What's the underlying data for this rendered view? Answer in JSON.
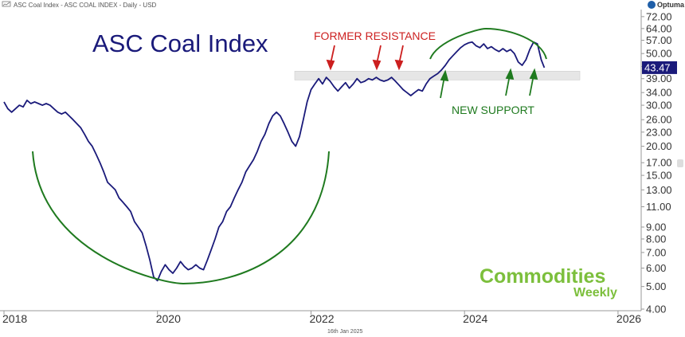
{
  "header": {
    "caption": "ASC Coal Index - ASC COAL INDEX - Daily - USD",
    "brand": "Optuma",
    "footer_date": "16th Jan 2025"
  },
  "colors": {
    "series": "#1a1a7a",
    "arc": "#1f7a1f",
    "resistance_text": "#cc1f1f",
    "support_text": "#1f7a1f",
    "band": "#e6e6e6",
    "last_label_bg": "#1a1a7a",
    "brand": "#7cbf3c"
  },
  "branding": {
    "line1": "Commodities",
    "line2": "Weekly"
  },
  "chart_data": {
    "type": "line",
    "title": "ASC Coal Index",
    "xlabel": "",
    "ylabel": "",
    "yscale": "log",
    "ylim": [
      4.0,
      76.0
    ],
    "xlim": [
      2018.0,
      2026.25
    ],
    "y_ticks": [
      "72.00",
      "64.00",
      "57.00",
      "50.00",
      "44.00",
      "39.00",
      "34.00",
      "30.00",
      "26.00",
      "23.00",
      "20.00",
      "17.00",
      "15.00",
      "13.00",
      "11.00",
      "9.00",
      "8.00",
      "7.00",
      "6.00",
      "5.00",
      "4.00"
    ],
    "x_ticks": [
      "2018",
      "2020",
      "2022",
      "2024",
      "2026"
    ],
    "last_value_label": "43.47",
    "grid": false,
    "legend": "none",
    "annotations": {
      "resistance_label": "FORMER RESISTANCE",
      "support_label": "NEW SUPPORT",
      "resistance_band": [
        38.5,
        42.0
      ]
    },
    "series": [
      {
        "x": [
          2018.0,
          2018.05,
          2018.1,
          2018.15,
          2018.2,
          2018.25,
          2018.3,
          2018.35,
          2018.4,
          2018.45,
          2018.5,
          2018.55,
          2018.6,
          2018.65,
          2018.7,
          2018.75,
          2018.8,
          2018.85,
          2018.9,
          2018.95,
          2019.0,
          2019.05,
          2019.1,
          2019.15,
          2019.2,
          2019.25,
          2019.3,
          2019.35,
          2019.4,
          2019.45,
          2019.5,
          2019.55,
          2019.6,
          2019.65,
          2019.7,
          2019.75,
          2019.8,
          2019.85,
          2019.9,
          2019.95,
          2020.0,
          2020.05,
          2020.1,
          2020.15,
          2020.2,
          2020.25,
          2020.3,
          2020.35,
          2020.4,
          2020.45,
          2020.5,
          2020.55,
          2020.6,
          2020.65,
          2020.7,
          2020.75,
          2020.8,
          2020.85,
          2020.9,
          2020.95,
          2021.0,
          2021.05,
          2021.1,
          2021.15,
          2021.2,
          2021.25,
          2021.3,
          2021.35,
          2021.4,
          2021.45,
          2021.5,
          2021.55,
          2021.6,
          2021.65,
          2021.7,
          2021.75,
          2021.8,
          2021.85,
          2021.9,
          2021.95,
          2022.0,
          2022.05,
          2022.1,
          2022.15,
          2022.2,
          2022.25,
          2022.3,
          2022.35,
          2022.4,
          2022.45,
          2022.5,
          2022.55,
          2022.6,
          2022.65,
          2022.7,
          2022.75,
          2022.8,
          2022.85,
          2022.9,
          2022.95,
          2023.0,
          2023.05,
          2023.1,
          2023.15,
          2023.2,
          2023.25,
          2023.3,
          2023.35,
          2023.4,
          2023.45,
          2023.5,
          2023.55,
          2023.6,
          2023.65,
          2023.7,
          2023.75,
          2023.8,
          2023.85,
          2023.9,
          2023.95,
          2024.0,
          2024.05,
          2024.1,
          2024.15,
          2024.2,
          2024.25,
          2024.3,
          2024.35,
          2024.4,
          2024.45,
          2024.5,
          2024.55,
          2024.6,
          2024.65,
          2024.7,
          2024.75,
          2024.8,
          2024.85,
          2024.9,
          2024.95,
          2025.0,
          2025.04
        ],
        "values": [
          31.0,
          29.0,
          28.0,
          29.0,
          30.0,
          29.5,
          31.5,
          30.5,
          31.0,
          30.5,
          30.0,
          30.5,
          30.0,
          29.0,
          28.0,
          27.5,
          28.0,
          27.0,
          26.0,
          25.0,
          24.0,
          22.5,
          21.0,
          20.0,
          18.5,
          17.0,
          15.5,
          14.0,
          13.5,
          13.0,
          12.0,
          11.5,
          11.0,
          10.5,
          9.5,
          9.0,
          8.5,
          7.5,
          6.5,
          5.5,
          5.3,
          5.8,
          6.2,
          5.9,
          5.7,
          6.0,
          6.4,
          6.1,
          5.9,
          6.0,
          6.2,
          6.0,
          5.9,
          6.5,
          7.2,
          8.0,
          9.0,
          9.5,
          10.5,
          11.0,
          12.0,
          13.0,
          14.0,
          15.5,
          16.5,
          17.5,
          19.0,
          21.0,
          22.5,
          25.0,
          27.0,
          28.0,
          27.0,
          25.0,
          23.0,
          21.0,
          20.0,
          22.0,
          26.0,
          31.0,
          35.0,
          37.0,
          39.0,
          37.0,
          39.5,
          38.0,
          36.0,
          34.5,
          36.0,
          37.5,
          35.5,
          37.0,
          39.0,
          37.5,
          38.0,
          39.0,
          38.5,
          39.5,
          38.5,
          38.0,
          38.5,
          39.5,
          38.0,
          36.5,
          35.0,
          34.0,
          33.0,
          34.0,
          35.0,
          34.5,
          37.0,
          39.0,
          40.0,
          41.0,
          42.5,
          44.5,
          47.0,
          49.0,
          51.0,
          53.0,
          54.5,
          55.5,
          56.0,
          54.0,
          53.0,
          55.0,
          52.5,
          53.5,
          52.0,
          51.0,
          52.5,
          51.0,
          52.0,
          50.0,
          46.0,
          44.5,
          47.0,
          52.0,
          56.0,
          55.0,
          47.0,
          43.5
        ]
      }
    ]
  }
}
